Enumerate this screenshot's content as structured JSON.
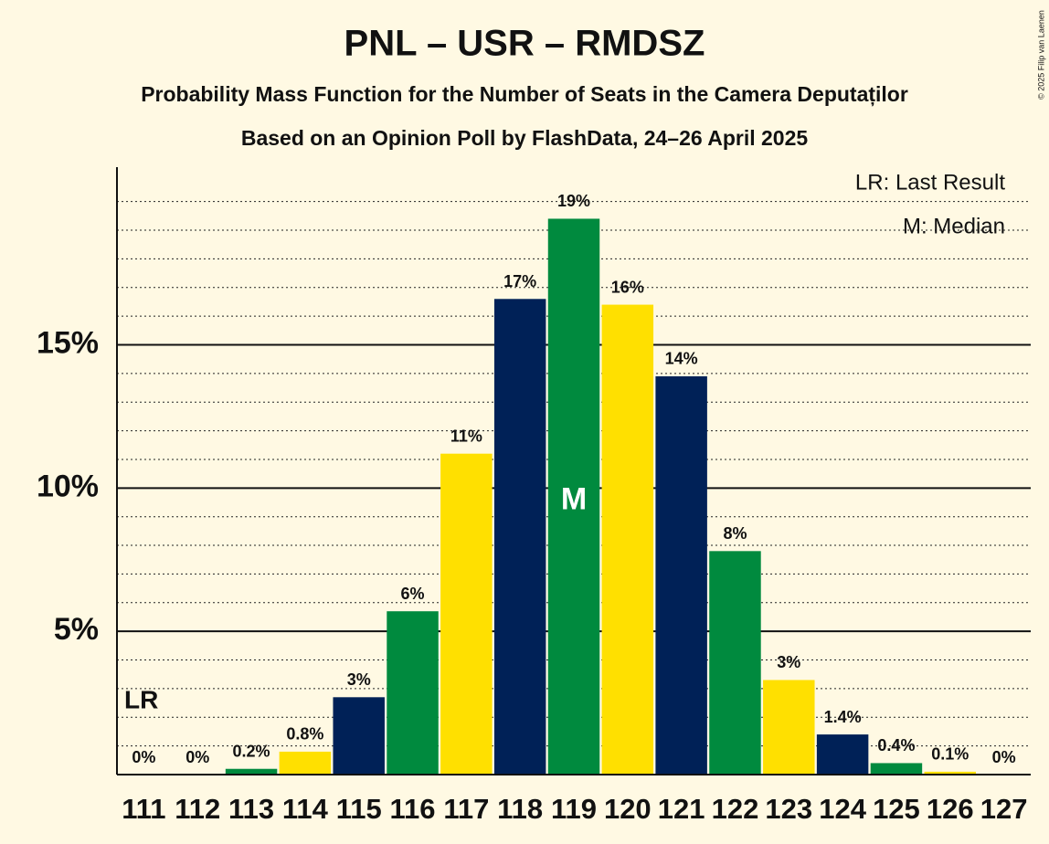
{
  "chart_data": {
    "type": "bar",
    "title": "PNL – USR – RMDSZ",
    "subtitle": "Probability Mass Function for the Number of Seats in the Camera Deputaților",
    "subtitle2": "Based on an Opinion Poll by FlashData, 24–26 April 2025",
    "copyright": "© 2025 Filip van Laenen",
    "legend": [
      "LR: Last Result",
      "M: Median"
    ],
    "lr_marker": "LR",
    "median_marker": "M",
    "last_result": "111",
    "median": "119",
    "categories": [
      "111",
      "112",
      "113",
      "114",
      "115",
      "116",
      "117",
      "118",
      "119",
      "120",
      "121",
      "122",
      "123",
      "124",
      "125",
      "126",
      "127"
    ],
    "values": [
      0,
      0,
      0.2,
      0.8,
      2.7,
      5.7,
      11.2,
      16.6,
      19.4,
      16.4,
      13.9,
      7.8,
      3.3,
      1.4,
      0.4,
      0.1,
      0
    ],
    "value_labels": [
      "0%",
      "0%",
      "0.2%",
      "0.8%",
      "3%",
      "6%",
      "11%",
      "17%",
      "19%",
      "16%",
      "14%",
      "8%",
      "3%",
      "1.4%",
      "0.4%",
      "0.1%",
      "0%"
    ],
    "colors": [
      "#002157",
      "#002157",
      "#008a3e",
      "#ffe000",
      "#002157",
      "#008a3e",
      "#ffe000",
      "#002157",
      "#008a3e",
      "#ffe000",
      "#002157",
      "#008a3e",
      "#ffe000",
      "#002157",
      "#008a3e",
      "#ffe000",
      "#002157"
    ],
    "ylim": [
      0,
      21.2
    ],
    "yticks": [
      {
        "value": 5,
        "label": "5%"
      },
      {
        "value": 10,
        "label": "10%"
      },
      {
        "value": 15,
        "label": "15%"
      }
    ],
    "minor_yticks": [
      1,
      2,
      3,
      4,
      6,
      7,
      8,
      9,
      11,
      12,
      13,
      14,
      16,
      17,
      18,
      19,
      20
    ],
    "grid": true
  }
}
